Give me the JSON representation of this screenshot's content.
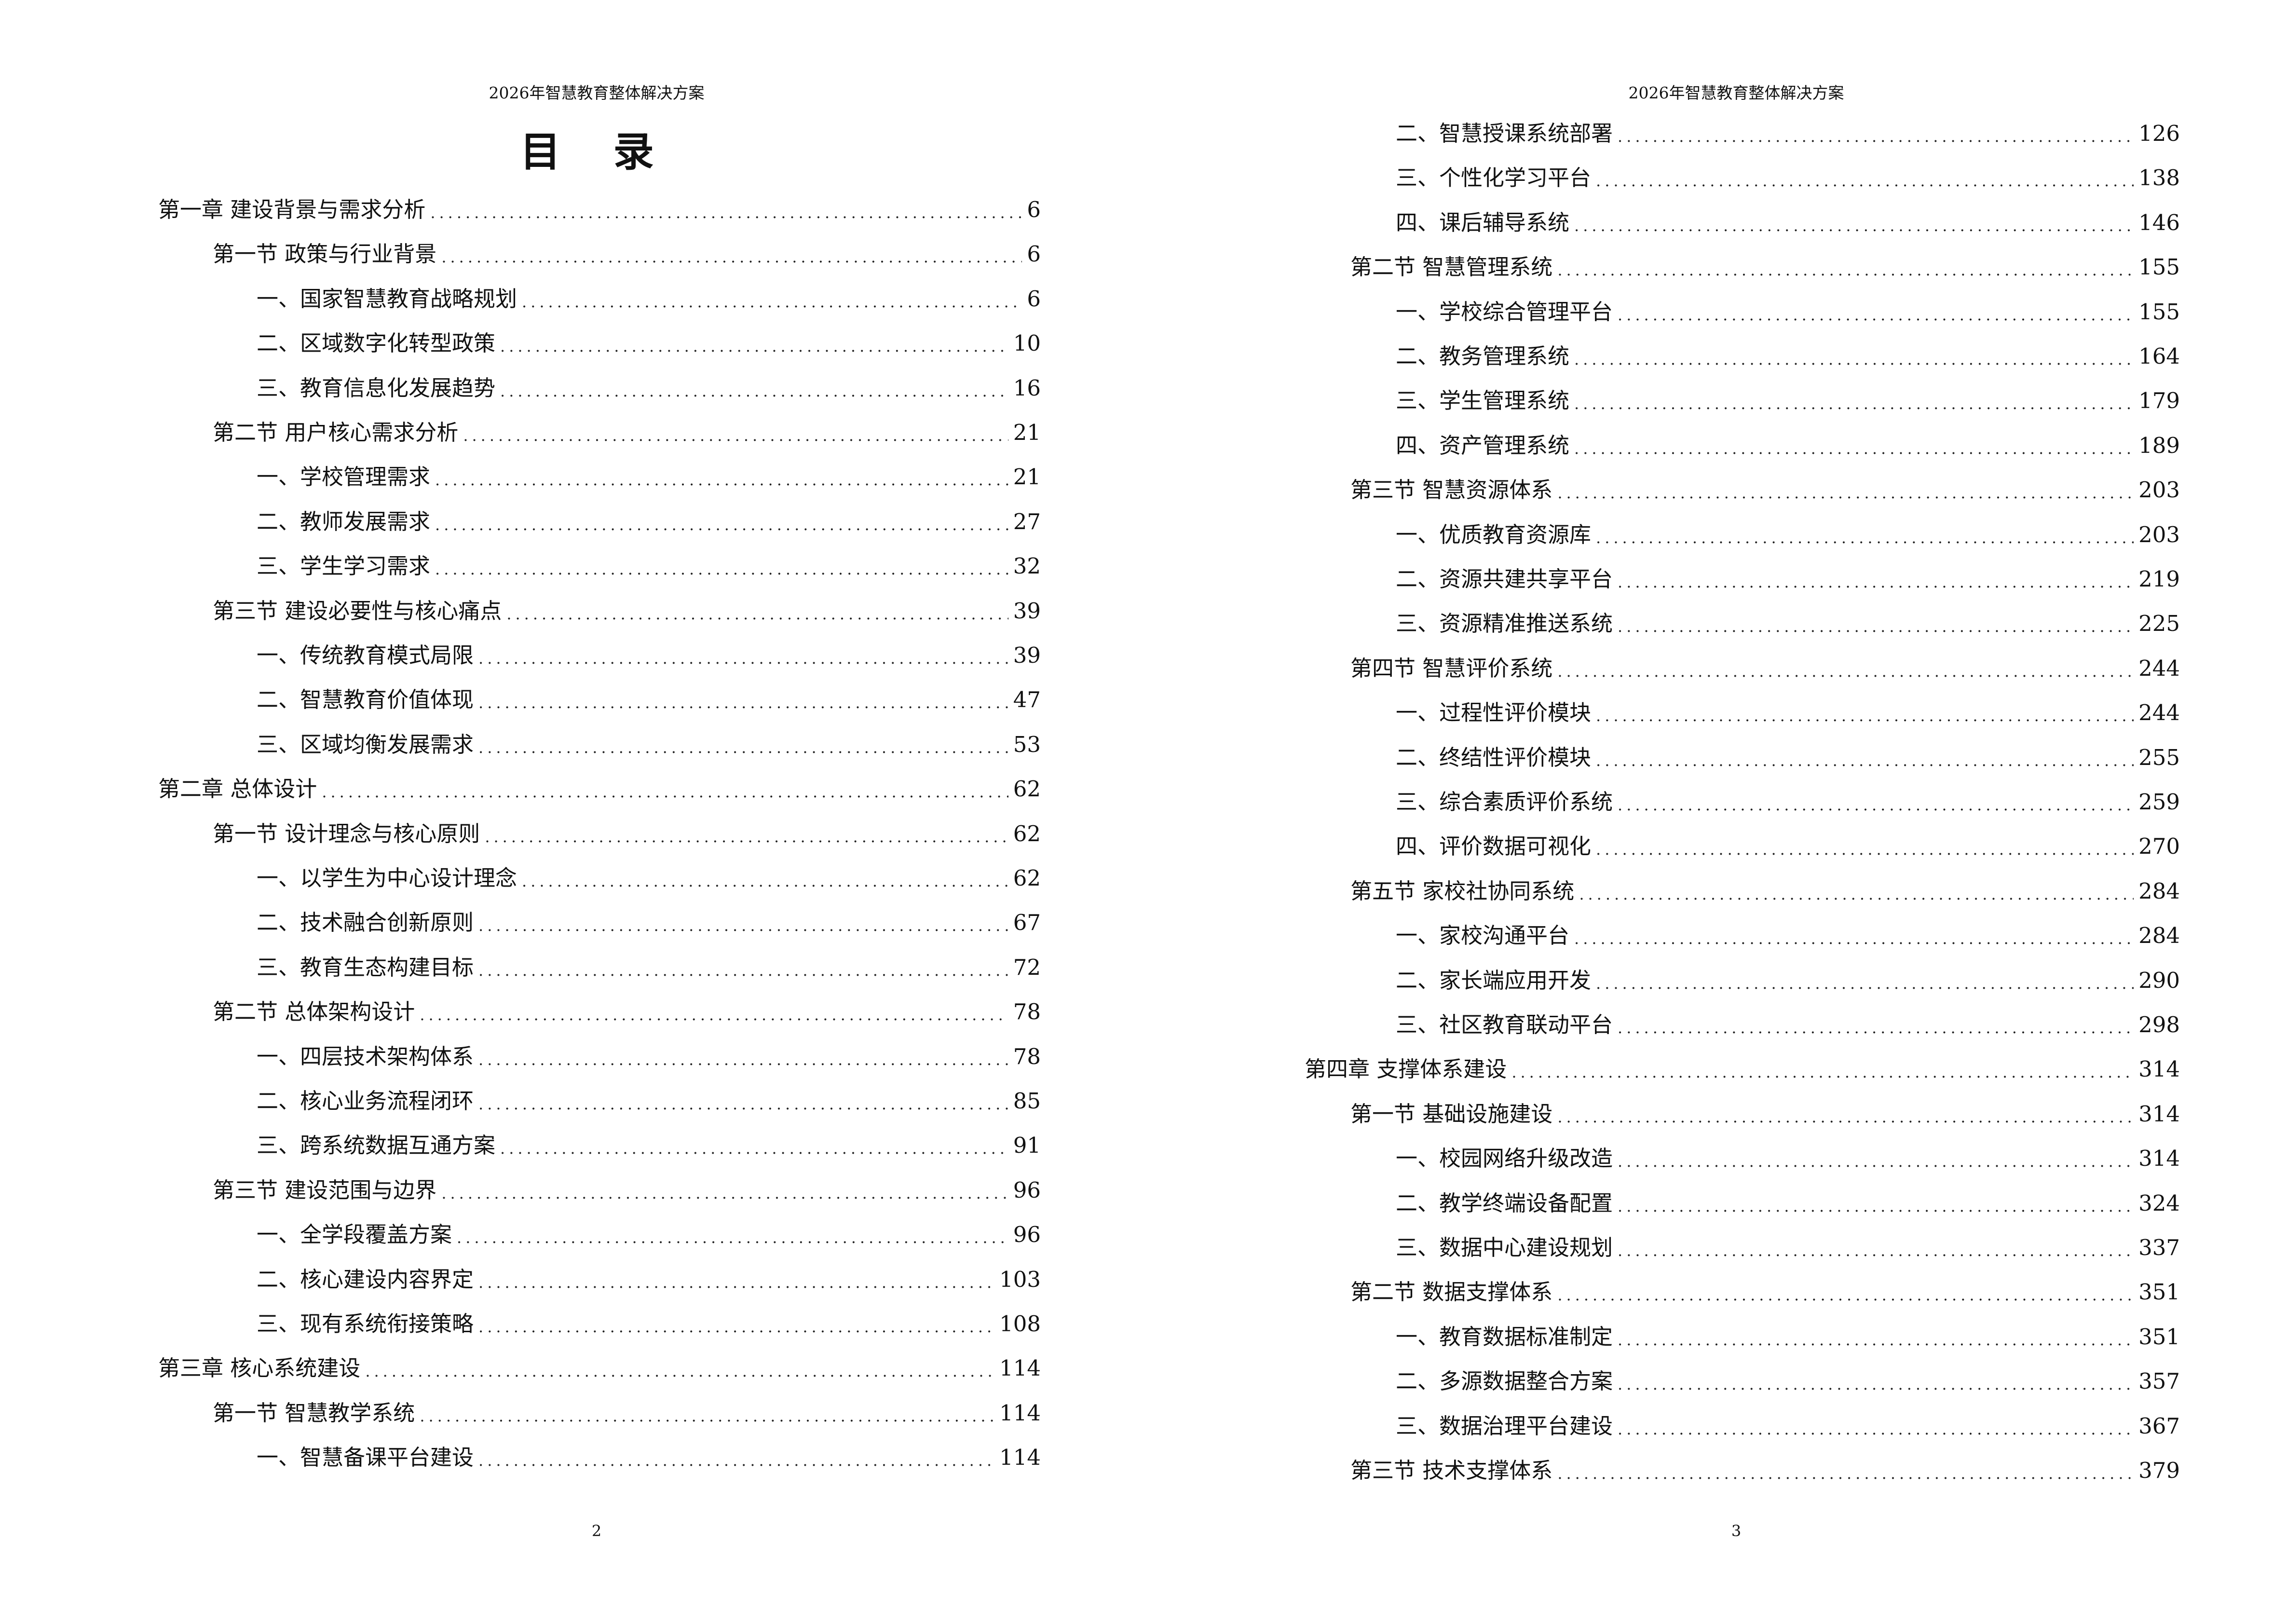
{
  "header": "2026年智慧教育整体解决方案",
  "toc_title": "目 录",
  "pages": [
    {
      "number": "2",
      "entries": [
        {
          "level": 1,
          "text": "第一章  建设背景与需求分析",
          "page": "6"
        },
        {
          "level": 2,
          "text": "第一节  政策与行业背景",
          "page": "6"
        },
        {
          "level": 3,
          "text": "一、国家智慧教育战略规划",
          "page": "6"
        },
        {
          "level": 3,
          "text": "二、区域数字化转型政策",
          "page": "10"
        },
        {
          "level": 3,
          "text": "三、教育信息化发展趋势",
          "page": "16"
        },
        {
          "level": 2,
          "text": "第二节  用户核心需求分析",
          "page": "21"
        },
        {
          "level": 3,
          "text": "一、学校管理需求",
          "page": "21"
        },
        {
          "level": 3,
          "text": "二、教师发展需求",
          "page": "27"
        },
        {
          "level": 3,
          "text": "三、学生学习需求",
          "page": "32"
        },
        {
          "level": 2,
          "text": "第三节  建设必要性与核心痛点",
          "page": "39"
        },
        {
          "level": 3,
          "text": "一、传统教育模式局限",
          "page": "39"
        },
        {
          "level": 3,
          "text": "二、智慧教育价值体现",
          "page": "47"
        },
        {
          "level": 3,
          "text": "三、区域均衡发展需求",
          "page": "53"
        },
        {
          "level": 1,
          "text": "第二章  总体设计",
          "page": "62"
        },
        {
          "level": 2,
          "text": "第一节  设计理念与核心原则",
          "page": "62"
        },
        {
          "level": 3,
          "text": "一、以学生为中心设计理念",
          "page": "62"
        },
        {
          "level": 3,
          "text": "二、技术融合创新原则",
          "page": "67"
        },
        {
          "level": 3,
          "text": "三、教育生态构建目标",
          "page": "72"
        },
        {
          "level": 2,
          "text": "第二节  总体架构设计",
          "page": "78"
        },
        {
          "level": 3,
          "text": "一、四层技术架构体系",
          "page": "78"
        },
        {
          "level": 3,
          "text": "二、核心业务流程闭环",
          "page": "85"
        },
        {
          "level": 3,
          "text": "三、跨系统数据互通方案",
          "page": "91"
        },
        {
          "level": 2,
          "text": "第三节  建设范围与边界",
          "page": "96"
        },
        {
          "level": 3,
          "text": "一、全学段覆盖方案",
          "page": "96"
        },
        {
          "level": 3,
          "text": "二、核心建设内容界定",
          "page": "103"
        },
        {
          "level": 3,
          "text": "三、现有系统衔接策略",
          "page": "108"
        },
        {
          "level": 1,
          "text": "第三章  核心系统建设",
          "page": "114"
        },
        {
          "level": 2,
          "text": "第一节  智慧教学系统",
          "page": "114"
        },
        {
          "level": 3,
          "text": "一、智慧备课平台建设",
          "page": "114"
        }
      ]
    },
    {
      "number": "3",
      "entries": [
        {
          "level": 3,
          "text": "二、智慧授课系统部署",
          "page": "126"
        },
        {
          "level": 3,
          "text": "三、个性化学习平台",
          "page": "138"
        },
        {
          "level": 3,
          "text": "四、课后辅导系统",
          "page": "146"
        },
        {
          "level": 2,
          "text": "第二节  智慧管理系统",
          "page": "155"
        },
        {
          "level": 3,
          "text": "一、学校综合管理平台",
          "page": "155"
        },
        {
          "level": 3,
          "text": "二、教务管理系统",
          "page": "164"
        },
        {
          "level": 3,
          "text": "三、学生管理系统",
          "page": "179"
        },
        {
          "level": 3,
          "text": "四、资产管理系统",
          "page": "189"
        },
        {
          "level": 2,
          "text": "第三节  智慧资源体系",
          "page": "203"
        },
        {
          "level": 3,
          "text": "一、优质教育资源库",
          "page": "203"
        },
        {
          "level": 3,
          "text": "二、资源共建共享平台",
          "page": "219"
        },
        {
          "level": 3,
          "text": "三、资源精准推送系统",
          "page": "225"
        },
        {
          "level": 2,
          "text": "第四节  智慧评价系统",
          "page": "244"
        },
        {
          "level": 3,
          "text": "一、过程性评价模块",
          "page": "244"
        },
        {
          "level": 3,
          "text": "二、终结性评价模块",
          "page": "255"
        },
        {
          "level": 3,
          "text": "三、综合素质评价系统",
          "page": "259"
        },
        {
          "level": 3,
          "text": "四、评价数据可视化",
          "page": "270"
        },
        {
          "level": 2,
          "text": "第五节  家校社协同系统",
          "page": "284"
        },
        {
          "level": 3,
          "text": "一、家校沟通平台",
          "page": "284"
        },
        {
          "level": 3,
          "text": "二、家长端应用开发",
          "page": "290"
        },
        {
          "level": 3,
          "text": "三、社区教育联动平台",
          "page": "298"
        },
        {
          "level": 1,
          "text": "第四章  支撑体系建设",
          "page": "314"
        },
        {
          "level": 2,
          "text": "第一节  基础设施建设",
          "page": "314"
        },
        {
          "level": 3,
          "text": "一、校园网络升级改造",
          "page": "314"
        },
        {
          "level": 3,
          "text": "二、教学终端设备配置",
          "page": "324"
        },
        {
          "level": 3,
          "text": "三、数据中心建设规划",
          "page": "337"
        },
        {
          "level": 2,
          "text": "第二节  数据支撑体系",
          "page": "351"
        },
        {
          "level": 3,
          "text": "一、教育数据标准制定",
          "page": "351"
        },
        {
          "level": 3,
          "text": "二、多源数据整合方案",
          "page": "357"
        },
        {
          "level": 3,
          "text": "三、数据治理平台建设",
          "page": "367"
        },
        {
          "level": 2,
          "text": "第三节  技术支撑体系",
          "page": "379"
        }
      ]
    }
  ]
}
